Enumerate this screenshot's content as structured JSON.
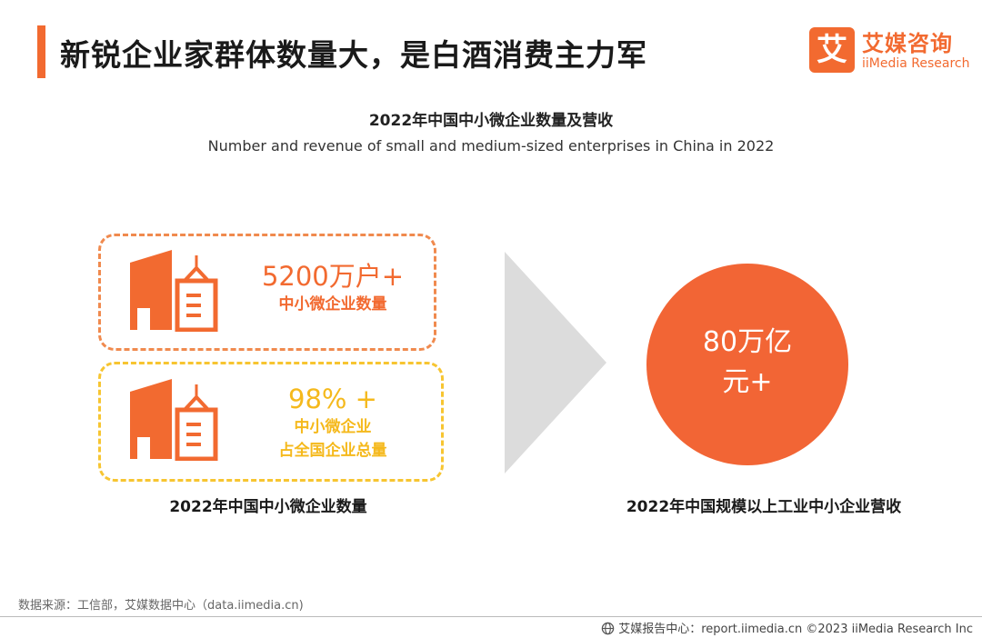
{
  "header": {
    "title": "新锐企业家群体数量大，是白酒消费主力军",
    "logo_mark": "艾",
    "logo_cn": "艾媒咨询",
    "logo_en": "iiMedia Research"
  },
  "chart": {
    "title_cn": "2022年中国中小微企业数量及营收",
    "title_en": "Number and revenue of small and medium-sized enterprises in China in 2022"
  },
  "left": {
    "count_value": "5200万户+",
    "count_label": "中小微企业数量",
    "share_value": "98% +",
    "share_label_1": "中小微企业",
    "share_label_2": "占全国企业总量",
    "caption": "2022年中国中小微企业数量"
  },
  "right": {
    "revenue_line1": "80万亿",
    "revenue_line2": "元+",
    "caption": "2022年中国规模以上工业中小企业营收"
  },
  "footer": {
    "source": "数据来源：工信部，艾媒数据中心（data.iimedia.cn)",
    "copyright": "艾媒报告中心：report.iimedia.cn  ©2023  iiMedia Research  Inc"
  },
  "icons": {
    "building": "building-icon",
    "arrow": "arrow-right-icon",
    "globe": "globe-icon"
  },
  "colors": {
    "accent": "#f26a30",
    "yellow": "#f5b91c",
    "circle": "#f26535",
    "arrow": "#dcdcdc"
  }
}
